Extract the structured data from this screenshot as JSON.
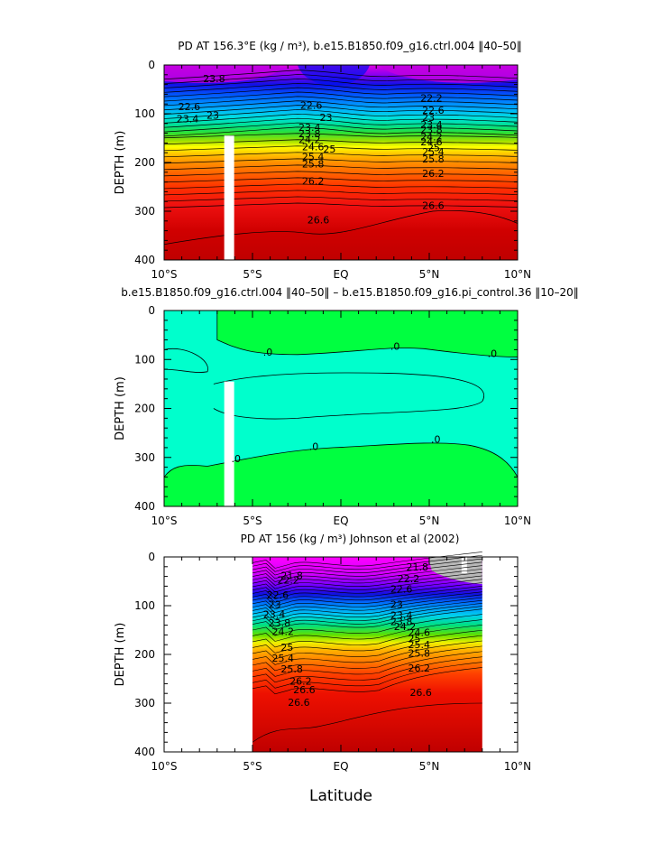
{
  "xlabel": "Latitude",
  "ylabel": "DEPTH (m)",
  "x_ticks": [
    "10°S",
    "5°S",
    "EQ",
    "5°N",
    "10°N"
  ],
  "y_ticks": [
    "0",
    "100",
    "200",
    "300",
    "400"
  ],
  "chart_data": [
    {
      "type": "contour",
      "title": "PD AT 156.3°E (kg / m³), b.e15.B1850.f09_g16.ctrl.004 ‖40–50‖",
      "xlabel": "",
      "ylabel": "DEPTH (m)",
      "xlim": [
        -10,
        10
      ],
      "ylim": [
        400,
        0
      ],
      "contour_labels": [
        {
          "v": "23.8",
          "lat": -7.8,
          "depth": 35
        },
        {
          "v": "22.6",
          "lat": -9.2,
          "depth": 93
        },
        {
          "v": "23",
          "lat": -7.6,
          "depth": 110
        },
        {
          "v": "23.4",
          "lat": -9.3,
          "depth": 118
        },
        {
          "v": "22.6",
          "lat": -2.3,
          "depth": 90
        },
        {
          "v": "23",
          "lat": -1.2,
          "depth": 115
        },
        {
          "v": "23.4",
          "lat": -2.4,
          "depth": 135
        },
        {
          "v": "23.8",
          "lat": -2.4,
          "depth": 148
        },
        {
          "v": "24.2",
          "lat": -2.4,
          "depth": 160
        },
        {
          "v": "24.6",
          "lat": -2.2,
          "depth": 175
        },
        {
          "v": "25",
          "lat": -1.0,
          "depth": 180
        },
        {
          "v": "25.4",
          "lat": -2.2,
          "depth": 195
        },
        {
          "v": "25.8",
          "lat": -2.2,
          "depth": 210
        },
        {
          "v": "26.2",
          "lat": -2.2,
          "depth": 245
        },
        {
          "v": "26.6",
          "lat": -1.9,
          "depth": 325
        },
        {
          "v": "22.2",
          "lat": 4.5,
          "depth": 75
        },
        {
          "v": "22.6",
          "lat": 4.6,
          "depth": 100
        },
        {
          "v": "23",
          "lat": 4.6,
          "depth": 115
        },
        {
          "v": "23.4",
          "lat": 4.5,
          "depth": 130
        },
        {
          "v": "23.8",
          "lat": 4.5,
          "depth": 140
        },
        {
          "v": "24.2",
          "lat": 4.5,
          "depth": 155
        },
        {
          "v": "24.6",
          "lat": 4.5,
          "depth": 165
        },
        {
          "v": "25",
          "lat": 4.9,
          "depth": 177
        },
        {
          "v": "25.4",
          "lat": 4.6,
          "depth": 185
        },
        {
          "v": "25.8",
          "lat": 4.6,
          "depth": 200
        },
        {
          "v": "26.2",
          "lat": 4.6,
          "depth": 230
        },
        {
          "v": "26.6",
          "lat": 4.6,
          "depth": 295
        }
      ]
    },
    {
      "type": "contour",
      "title": "b.e15.B1850.f09_g16.ctrl.004 ‖40–50‖ – b.e15.B1850.f09_g16.pi_control.36 ‖10–20‖",
      "xlabel": "",
      "ylabel": "DEPTH (m)",
      "xlim": [
        -10,
        10
      ],
      "ylim": [
        400,
        0
      ],
      "contour_labels": [
        {
          "v": ".0",
          "lat": -4.4,
          "depth": 92
        },
        {
          "v": ".0",
          "lat": 2.8,
          "depth": 80
        },
        {
          "v": ".0",
          "lat": 8.3,
          "depth": 95
        },
        {
          "v": ".0",
          "lat": -6.2,
          "depth": 310
        },
        {
          "v": ".0",
          "lat": -1.8,
          "depth": 285
        },
        {
          "v": ".0",
          "lat": 5.1,
          "depth": 270
        }
      ]
    },
    {
      "type": "contour",
      "title": "PD AT 156 (kg / m³) Johnson et al (2002)",
      "xlabel": "Latitude",
      "ylabel": "DEPTH (m)",
      "xlim": [
        -10,
        10
      ],
      "ylim": [
        400,
        0
      ],
      "data_extent_lat": [
        -5,
        8
      ],
      "contour_labels": [
        {
          "v": "21.8",
          "lat": -3.4,
          "depth": 45
        },
        {
          "v": "22.2",
          "lat": -3.6,
          "depth": 55
        },
        {
          "v": "22.6",
          "lat": -4.2,
          "depth": 85
        },
        {
          "v": "23",
          "lat": -4.1,
          "depth": 105
        },
        {
          "v": "23.4",
          "lat": -4.4,
          "depth": 125
        },
        {
          "v": "23.8",
          "lat": -4.1,
          "depth": 143
        },
        {
          "v": "24.2",
          "lat": -3.9,
          "depth": 160
        },
        {
          "v": "25",
          "lat": -3.4,
          "depth": 193
        },
        {
          "v": "25.4",
          "lat": -3.9,
          "depth": 215
        },
        {
          "v": "25.8",
          "lat": -3.4,
          "depth": 237
        },
        {
          "v": "26.2",
          "lat": -2.9,
          "depth": 262
        },
        {
          "v": "26.6",
          "lat": -2.7,
          "depth": 280
        },
        {
          "v": "26.6",
          "lat": -3.0,
          "depth": 306
        },
        {
          "v": "21.8",
          "lat": 3.7,
          "depth": 28
        },
        {
          "v": "22.2",
          "lat": 3.2,
          "depth": 52
        },
        {
          "v": "22.6",
          "lat": 2.8,
          "depth": 73
        },
        {
          "v": "23",
          "lat": 2.8,
          "depth": 105
        },
        {
          "v": "23.4",
          "lat": 2.8,
          "depth": 127
        },
        {
          "v": "23.8",
          "lat": 2.8,
          "depth": 140
        },
        {
          "v": "24.2",
          "lat": 3.0,
          "depth": 150
        },
        {
          "v": "24.6",
          "lat": 3.8,
          "depth": 162
        },
        {
          "v": "25",
          "lat": 3.8,
          "depth": 175
        },
        {
          "v": "25.4",
          "lat": 3.8,
          "depth": 187
        },
        {
          "v": "25.8",
          "lat": 3.8,
          "depth": 205
        },
        {
          "v": "26.2",
          "lat": 3.8,
          "depth": 235
        },
        {
          "v": "26.6",
          "lat": 3.9,
          "depth": 285
        }
      ]
    }
  ]
}
